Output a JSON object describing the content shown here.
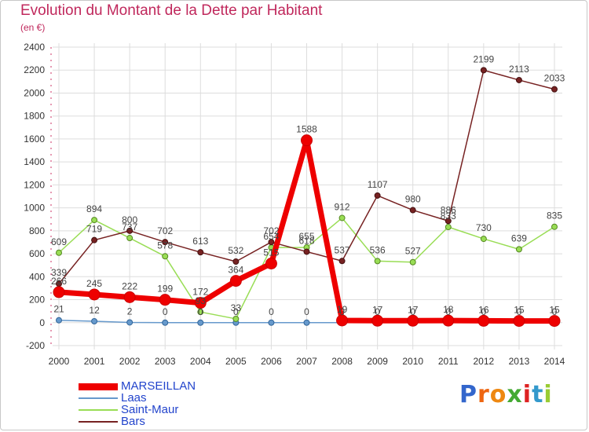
{
  "title": "Evolution du Montant de la Dette par Habitant",
  "subtitle": "(en €)",
  "logo": "Proxiti",
  "colors": {
    "MARSEILLAN": "#ee0000",
    "Laas": "#6699cc",
    "Saint-Maur": "#99dd55",
    "Bars": "#772222",
    "grid": "#dddddd",
    "axis_text": "#333333",
    "label_text": "#444444"
  },
  "chart_data": {
    "type": "line",
    "title": "Evolution du Montant de la Dette par Habitant",
    "ylabel": "(en €)",
    "xlabel": "",
    "x": [
      "2000",
      "2001",
      "2002",
      "2003",
      "2004",
      "2005",
      "2006",
      "2007",
      "2008",
      "2009",
      "2010",
      "2011",
      "2012",
      "2013",
      "2014"
    ],
    "ylim": [
      -200,
      2400
    ],
    "yticks": [
      "-200",
      "0",
      "200",
      "400",
      "600",
      "800",
      "1000",
      "1200",
      "1400",
      "1600",
      "1800",
      "2000",
      "2200",
      "2400"
    ],
    "grid": true,
    "legend": "bottom-left",
    "series": [
      {
        "name": "MARSEILLAN",
        "values": [
          266,
          245,
          222,
          199,
          172,
          364,
          515,
          1588,
          19,
          17,
          17,
          18,
          16,
          15,
          15
        ],
        "labels": [
          "266",
          "245",
          "222",
          "199",
          "172",
          "364",
          "515",
          "1588",
          "19",
          "17",
          "17",
          "18",
          "16",
          "15",
          "15"
        ]
      },
      {
        "name": "Laas",
        "values": [
          21,
          12,
          2,
          0,
          0,
          0,
          0,
          0,
          0,
          0,
          0,
          0,
          0,
          0,
          0
        ],
        "labels": [
          "21",
          "12",
          "2",
          "0",
          "0",
          "0",
          "0",
          "0",
          "0",
          "0",
          "0",
          "0",
          "0",
          "0",
          "0"
        ]
      },
      {
        "name": "Saint-Maur",
        "values": [
          609,
          894,
          737,
          578,
          93,
          33,
          654,
          655,
          912,
          536,
          527,
          833,
          730,
          639,
          835
        ],
        "labels": [
          "609",
          "894",
          "737",
          "578",
          "93",
          "33",
          "654",
          "655",
          "912",
          "536",
          "527",
          "833",
          "730",
          "639",
          "835"
        ]
      },
      {
        "name": "Bars",
        "values": [
          339,
          719,
          800,
          702,
          613,
          532,
          702,
          618,
          537,
          1107,
          980,
          886,
          2199,
          2113,
          2033
        ],
        "labels": [
          "339",
          "719",
          "800",
          "702",
          "613",
          "532",
          "702",
          "618",
          "537",
          "1107",
          "980",
          "886",
          "2199",
          "2113",
          "2033"
        ]
      }
    ]
  }
}
